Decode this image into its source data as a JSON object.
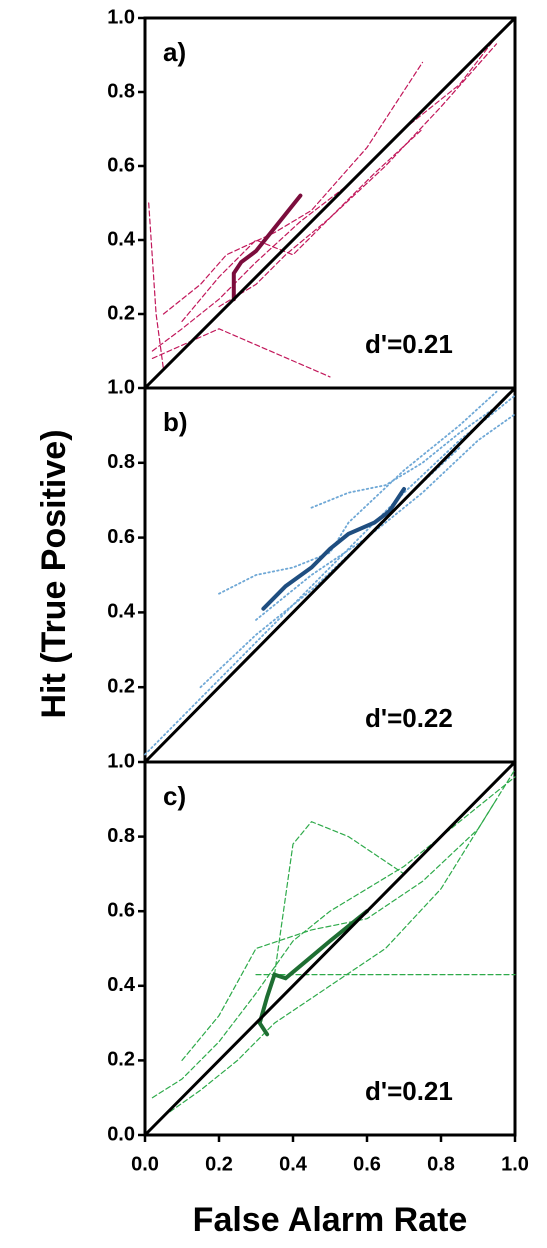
{
  "xlabel": "False Alarm Rate",
  "ylabel": "Hit (True Positive)",
  "chart_data": [
    {
      "type": "line",
      "panel_label": "a)",
      "annotation": "d'=0.21",
      "xlim": [
        0,
        1
      ],
      "ylim": [
        0,
        1
      ],
      "yticks": [
        0.2,
        0.4,
        0.6,
        0.8,
        {
          "value": 1,
          "label": "1.0"
        }
      ],
      "series": [
        {
          "color": "#c2185b",
          "dash": "5,3",
          "width": 1.2,
          "x": [
            0.02,
            0.1,
            0.2,
            0.3,
            0.42,
            0.55,
            0.7,
            0.85,
            0.95
          ],
          "values": [
            0.1,
            0.16,
            0.24,
            0.34,
            0.45,
            0.55,
            0.7,
            0.82,
            0.95
          ]
        },
        {
          "color": "#c2185b",
          "dash": "5,3",
          "width": 1.2,
          "x": [
            0.05,
            0.15,
            0.22,
            0.35,
            0.45,
            0.6,
            0.75
          ],
          "values": [
            0.2,
            0.28,
            0.36,
            0.42,
            0.48,
            0.65,
            0.88
          ]
        },
        {
          "color": "#c2185b",
          "dash": "5,3",
          "width": 1.2,
          "x": [
            0.1,
            0.2,
            0.3,
            0.4,
            0.5,
            0.65,
            0.8,
            0.95
          ],
          "values": [
            0.18,
            0.3,
            0.4,
            0.36,
            0.46,
            0.6,
            0.76,
            0.93
          ]
        },
        {
          "color": "#c2185b",
          "dash": "5,3",
          "width": 1.2,
          "x": [
            0.01,
            0.03,
            0.05
          ],
          "values": [
            0.5,
            0.2,
            0.05
          ]
        },
        {
          "color": "#c2185b",
          "dash": "5,3",
          "width": 1.2,
          "x": [
            0.02,
            0.2,
            0.5
          ],
          "values": [
            0.08,
            0.16,
            0.03
          ]
        },
        {
          "color": "#c2185b",
          "dash": "5,3",
          "width": 1.2,
          "x": [
            0.2,
            0.3,
            0.38,
            0.5,
            0.62,
            0.75
          ],
          "values": [
            0.22,
            0.28,
            0.36,
            0.46,
            0.58,
            0.7
          ]
        },
        {
          "color": "#7b0d3c",
          "dash": "none",
          "width": 4,
          "x": [
            0.24,
            0.24,
            0.26,
            0.3,
            0.34,
            0.38,
            0.42
          ],
          "values": [
            0.24,
            0.31,
            0.34,
            0.37,
            0.42,
            0.47,
            0.52
          ]
        },
        {
          "color": "#000000",
          "dash": "none",
          "width": 3,
          "x": [
            0,
            1
          ],
          "values": [
            0,
            1
          ]
        }
      ]
    },
    {
      "type": "line",
      "panel_label": "b)",
      "annotation": "d'=0.22",
      "xlim": [
        0,
        1
      ],
      "ylim": [
        0,
        1
      ],
      "yticks": [
        0.2,
        0.4,
        0.6,
        0.8,
        {
          "value": 1,
          "label": "1.0"
        }
      ],
      "series": [
        {
          "color": "#6fa8d6",
          "dash": "1.5,3",
          "width": 1.8,
          "x": [
            0,
            0.1,
            0.2,
            0.3,
            0.4,
            0.5,
            0.6,
            0.7,
            0.85,
            1
          ],
          "values": [
            0.02,
            0.12,
            0.22,
            0.32,
            0.42,
            0.52,
            0.62,
            0.72,
            0.86,
            0.98
          ]
        },
        {
          "color": "#6fa8d6",
          "dash": "1.5,3",
          "width": 1.8,
          "x": [
            0.15,
            0.3,
            0.45,
            0.6,
            0.75,
            0.9,
            1
          ],
          "values": [
            0.2,
            0.34,
            0.46,
            0.6,
            0.72,
            0.86,
            0.93
          ]
        },
        {
          "color": "#6fa8d6",
          "dash": "1.5,3",
          "width": 1.8,
          "x": [
            0.2,
            0.3,
            0.4,
            0.5,
            0.55,
            0.7,
            0.85,
            0.95
          ],
          "values": [
            0.45,
            0.5,
            0.52,
            0.56,
            0.64,
            0.78,
            0.9,
            0.99
          ]
        },
        {
          "color": "#6fa8d6",
          "dash": "1.5,3",
          "width": 1.8,
          "x": [
            0.45,
            0.55,
            0.65,
            0.75,
            0.85,
            0.95
          ],
          "values": [
            0.68,
            0.72,
            0.74,
            0.8,
            0.88,
            0.95
          ]
        },
        {
          "color": "#6fa8d6",
          "dash": "1.5,3",
          "width": 1.8,
          "x": [
            0.3,
            0.45,
            0.6,
            0.72,
            0.85
          ],
          "values": [
            0.38,
            0.5,
            0.6,
            0.72,
            0.84
          ]
        },
        {
          "color": "#1f4e80",
          "dash": "none",
          "width": 4,
          "x": [
            0.32,
            0.38,
            0.45,
            0.5,
            0.55,
            0.62,
            0.66,
            0.7
          ],
          "values": [
            0.41,
            0.47,
            0.52,
            0.57,
            0.61,
            0.64,
            0.67,
            0.73
          ]
        },
        {
          "color": "#000000",
          "dash": "none",
          "width": 3,
          "x": [
            0,
            1
          ],
          "values": [
            0,
            1
          ]
        }
      ]
    },
    {
      "type": "line",
      "panel_label": "c)",
      "annotation": "d'=0.21",
      "xlim": [
        0,
        1
      ],
      "ylim": [
        0,
        1
      ],
      "xticks": [
        {
          "value": 0,
          "label": "0.0"
        },
        0.2,
        0.4,
        0.6,
        0.8,
        {
          "value": 1,
          "label": "1.0"
        }
      ],
      "yticks": [
        {
          "value": 0,
          "label": "0.0"
        },
        0.2,
        0.4,
        0.6,
        0.8,
        {
          "value": 1,
          "label": "1.0"
        }
      ],
      "series": [
        {
          "color": "#2eaa4a",
          "dash": "5,3",
          "width": 1.2,
          "x": [
            0.02,
            0.1,
            0.2,
            0.3,
            0.4,
            0.5,
            0.6,
            0.7,
            0.85,
            1
          ],
          "values": [
            0.1,
            0.15,
            0.25,
            0.38,
            0.52,
            0.6,
            0.66,
            0.72,
            0.84,
            0.96
          ]
        },
        {
          "color": "#2eaa4a",
          "dash": "5,3",
          "width": 1.2,
          "x": [
            0.35,
            0.4,
            0.45,
            0.55,
            0.7
          ],
          "values": [
            0.43,
            0.78,
            0.84,
            0.8,
            0.7
          ]
        },
        {
          "color": "#2eaa4a",
          "dash": "5,3",
          "width": 1.2,
          "x": [
            0.3,
            0.4,
            1
          ],
          "values": [
            0.43,
            0.43,
            0.43
          ]
        },
        {
          "color": "#2eaa4a",
          "dash": "5,3",
          "width": 1.2,
          "x": [
            0.05,
            0.15,
            0.25,
            0.35,
            0.5,
            0.65,
            0.8,
            0.95
          ],
          "values": [
            0.05,
            0.12,
            0.2,
            0.3,
            0.4,
            0.5,
            0.66,
            0.9
          ]
        },
        {
          "color": "#2eaa4a",
          "dash": "5,3",
          "width": 1.2,
          "x": [
            0.1,
            0.2,
            0.3,
            0.45,
            0.6,
            0.75,
            0.9,
            1
          ],
          "values": [
            0.2,
            0.32,
            0.5,
            0.55,
            0.58,
            0.68,
            0.82,
            0.98
          ]
        },
        {
          "color": "#1e6e32",
          "dash": "none",
          "width": 4,
          "x": [
            0.33,
            0.31,
            0.33,
            0.35,
            0.38,
            0.44,
            0.5,
            0.6
          ],
          "values": [
            0.27,
            0.3,
            0.37,
            0.43,
            0.42,
            0.47,
            0.52,
            0.6
          ]
        },
        {
          "color": "#000000",
          "dash": "none",
          "width": 3,
          "x": [
            0,
            1
          ],
          "values": [
            0,
            1
          ]
        }
      ]
    }
  ]
}
